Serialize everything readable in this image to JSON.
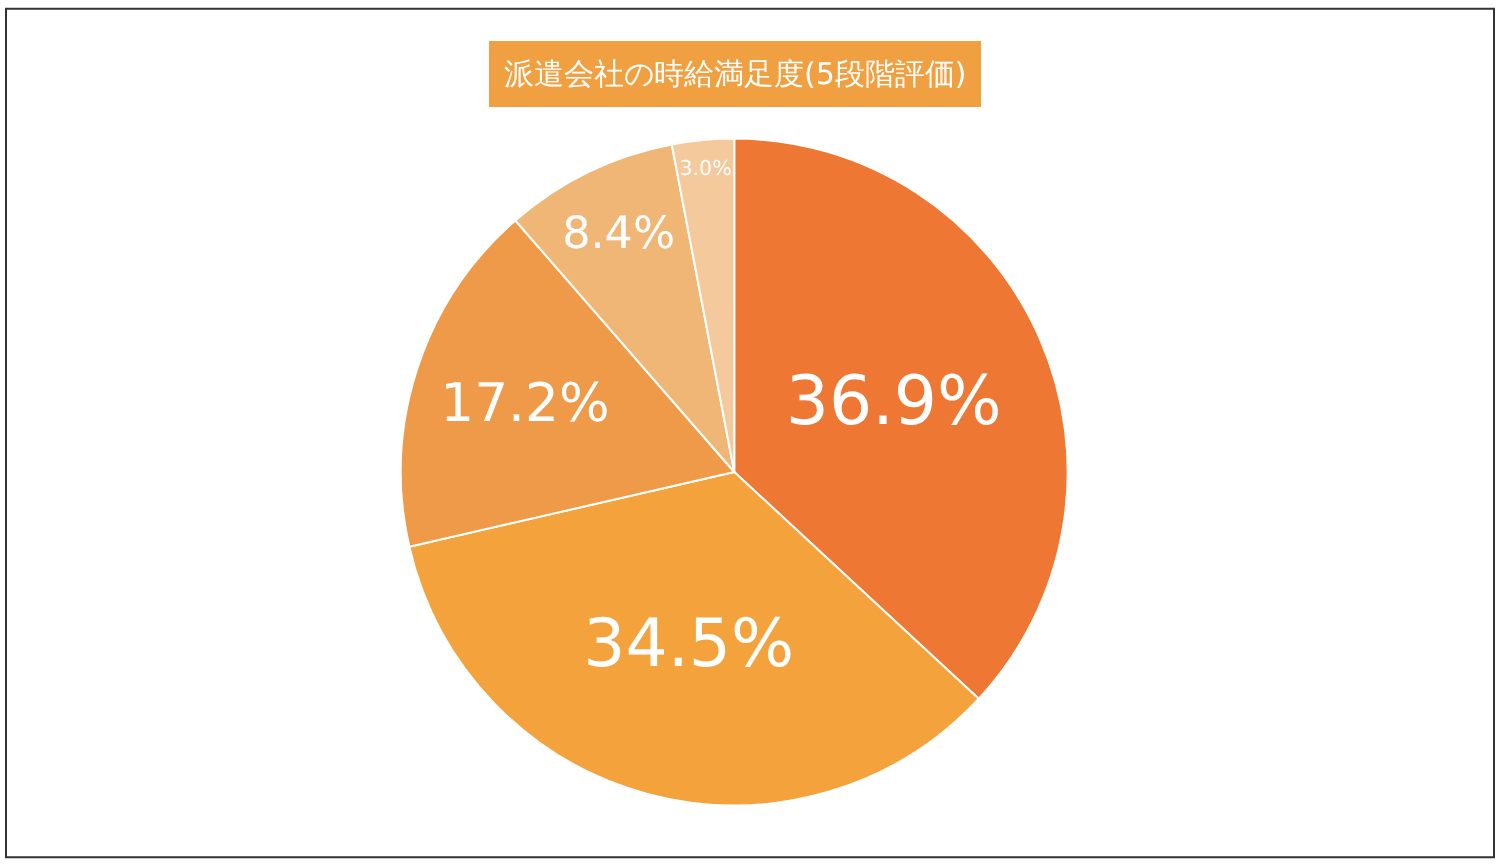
{
  "chart_data": {
    "type": "pie",
    "title": "派遣会社の時給満足度(5段階評価)",
    "categories": [
      null,
      null,
      null,
      null,
      null
    ],
    "values": [
      36.9,
      34.5,
      17.2,
      8.4,
      3.0
    ],
    "value_labels": [
      "36.9%",
      "34.5%",
      "17.2%",
      "8.4%",
      "3.0%"
    ],
    "colors": [
      "#ee7733",
      "#f3a23c",
      "#ee9a48",
      "#efb676",
      "#f4c99b"
    ],
    "legend": false
  }
}
